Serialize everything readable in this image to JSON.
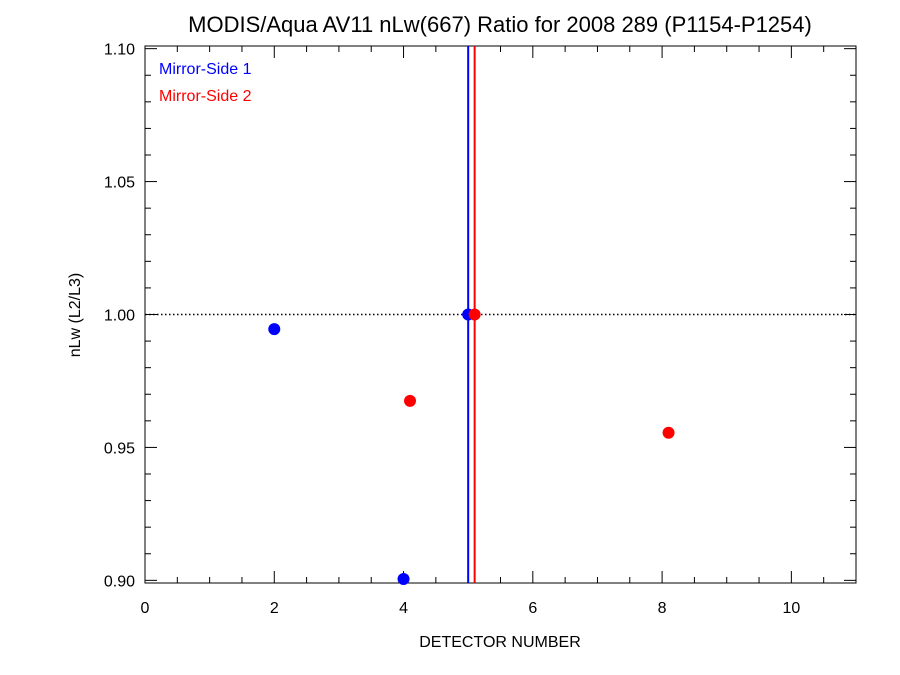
{
  "chart_data": {
    "type": "scatter",
    "title": "MODIS/Aqua AV11 nLw(667) Ratio for 2008 289 (P1154-P1254)",
    "xlabel": "DETECTOR NUMBER",
    "ylabel": "nLw (L2/L3)",
    "xlim": [
      0,
      11
    ],
    "ylim": [
      0.899,
      1.101
    ],
    "x_ticks": [
      0,
      2,
      4,
      6,
      8,
      10
    ],
    "x_tick_labels": [
      "0",
      "2",
      "4",
      "6",
      "8",
      "10"
    ],
    "y_ticks": [
      0.9,
      0.95,
      1.0,
      1.05,
      1.1
    ],
    "y_tick_labels": [
      "0.90",
      "0.95",
      "1.00",
      "1.05",
      "1.10"
    ],
    "reference_line": {
      "y": 1.0,
      "style": "dotted",
      "color": "#000000"
    },
    "legend": {
      "position": "top-left"
    },
    "series": [
      {
        "name": "Mirror-Side 1",
        "color": "#0000ff",
        "vline_x": 5.0,
        "points": [
          {
            "x": 2.0,
            "y": 0.9945
          },
          {
            "x": 4.0,
            "y": 0.9005
          },
          {
            "x": 5.0,
            "y": 1.0
          }
        ]
      },
      {
        "name": "Mirror-Side 2",
        "color": "#ff0000",
        "vline_x": 5.1,
        "points": [
          {
            "x": 4.1,
            "y": 0.9675
          },
          {
            "x": 5.1,
            "y": 1.0
          },
          {
            "x": 8.1,
            "y": 0.9555
          }
        ]
      }
    ]
  }
}
